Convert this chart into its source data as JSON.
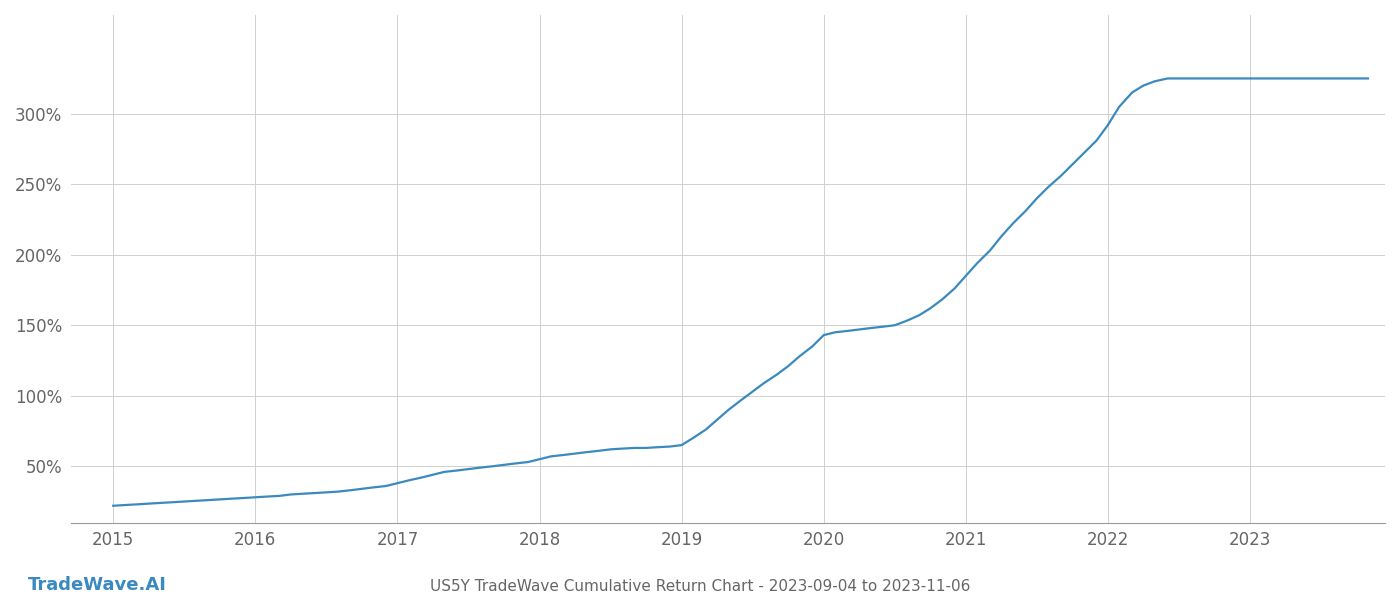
{
  "title": "US5Y TradeWave Cumulative Return Chart - 2023-09-04 to 2023-11-06",
  "watermark": "TradeWave.AI",
  "line_color": "#3a8abf",
  "background_color": "#ffffff",
  "grid_color": "#d0d0d0",
  "axis_color": "#999999",
  "text_color": "#666666",
  "x_years": [
    2015.0,
    2015.08,
    2015.17,
    2015.25,
    2015.33,
    2015.42,
    2015.5,
    2015.58,
    2015.67,
    2015.75,
    2015.83,
    2015.92,
    2016.0,
    2016.08,
    2016.17,
    2016.25,
    2016.33,
    2016.42,
    2016.5,
    2016.58,
    2016.67,
    2016.75,
    2016.83,
    2016.92,
    2017.0,
    2017.08,
    2017.17,
    2017.25,
    2017.33,
    2017.42,
    2017.5,
    2017.58,
    2017.67,
    2017.75,
    2017.83,
    2017.92,
    2018.0,
    2018.08,
    2018.17,
    2018.25,
    2018.33,
    2018.42,
    2018.5,
    2018.58,
    2018.67,
    2018.75,
    2018.83,
    2018.92,
    2019.0,
    2019.08,
    2019.17,
    2019.25,
    2019.33,
    2019.42,
    2019.5,
    2019.58,
    2019.67,
    2019.75,
    2019.83,
    2019.92,
    2020.0,
    2020.08,
    2020.17,
    2020.25,
    2020.33,
    2020.42,
    2020.5,
    2020.58,
    2020.67,
    2020.75,
    2020.83,
    2020.92,
    2021.0,
    2021.08,
    2021.17,
    2021.25,
    2021.33,
    2021.42,
    2021.5,
    2021.58,
    2021.67,
    2021.75,
    2021.83,
    2021.92,
    2022.0,
    2022.08,
    2022.17,
    2022.25,
    2022.33,
    2022.42,
    2022.5,
    2022.58,
    2022.67,
    2022.75,
    2022.83,
    2022.92,
    2023.0,
    2023.08,
    2023.17,
    2023.25,
    2023.33,
    2023.42,
    2023.5,
    2023.58,
    2023.67,
    2023.75,
    2023.83
  ],
  "y_values": [
    22,
    22.5,
    23,
    23.5,
    24,
    24.5,
    25,
    25.5,
    26,
    26.5,
    27,
    27.5,
    28,
    28.5,
    29,
    30,
    30.5,
    31,
    31.5,
    32,
    33,
    34,
    35,
    36,
    38,
    40,
    42,
    44,
    46,
    47,
    48,
    49,
    50,
    51,
    52,
    53,
    55,
    57,
    58,
    59,
    60,
    61,
    62,
    62.5,
    63,
    63,
    63.5,
    64,
    65,
    70,
    76,
    83,
    90,
    97,
    103,
    109,
    115,
    121,
    128,
    135,
    143,
    145,
    146,
    147,
    148,
    149,
    150,
    153,
    157,
    162,
    168,
    176,
    185,
    194,
    203,
    213,
    222,
    231,
    240,
    248,
    256,
    264,
    272,
    281,
    292,
    305,
    315,
    320,
    323,
    325,
    325,
    325,
    325,
    325,
    325,
    325,
    325,
    325,
    325,
    325,
    325,
    325,
    325,
    325,
    325,
    325,
    325
  ],
  "yticks": [
    50,
    100,
    150,
    200,
    250,
    300
  ],
  "ylim": [
    10,
    370
  ],
  "xlim": [
    2014.7,
    2023.95
  ],
  "xticks": [
    2015,
    2016,
    2017,
    2018,
    2019,
    2020,
    2021,
    2022,
    2023
  ],
  "line_width": 1.6,
  "title_fontsize": 11,
  "tick_fontsize": 12,
  "watermark_fontsize": 13
}
